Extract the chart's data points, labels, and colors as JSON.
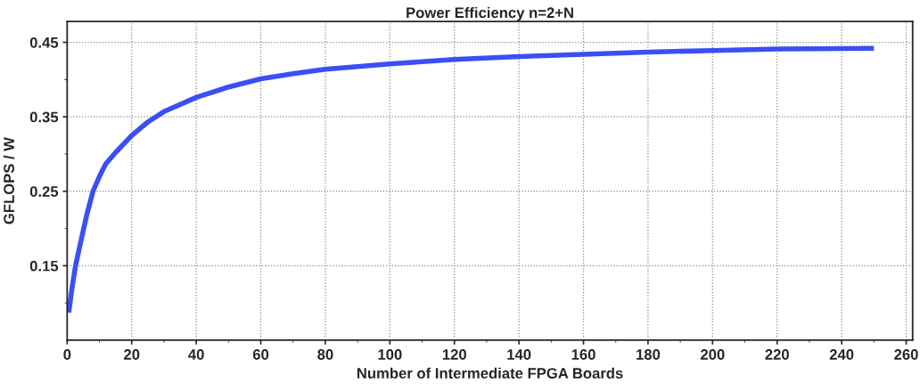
{
  "chart_data": {
    "type": "line",
    "title": "Power Efficiency n=2+N",
    "xlabel": "Number of Intermediate FPGA Boards",
    "ylabel": "GFLOPS / W",
    "series": [
      {
        "color": "#3a4ff5",
        "x": [
          0.5,
          1.5,
          2.6,
          4,
          6,
          8,
          10,
          12,
          15,
          20,
          25,
          30,
          40,
          50,
          60,
          70,
          80,
          100,
          120,
          140,
          160,
          180,
          200,
          220,
          250
        ],
        "values": [
          0.087,
          0.12,
          0.15,
          0.178,
          0.217,
          0.25,
          0.27,
          0.287,
          0.302,
          0.325,
          0.343,
          0.357,
          0.376,
          0.39,
          0.401,
          0.408,
          0.414,
          0.421,
          0.427,
          0.431,
          0.434,
          0.437,
          0.439,
          0.441,
          0.442
        ]
      }
    ],
    "xlim": [
      0,
      262
    ],
    "xticks": [
      0,
      20,
      40,
      60,
      80,
      100,
      120,
      140,
      160,
      180,
      200,
      220,
      240,
      260
    ],
    "ylim": [
      0.05,
      0.478
    ],
    "yticks": [
      0.15,
      0.25,
      0.35,
      0.45
    ],
    "grid": true,
    "line_style": "solid",
    "marker": "none",
    "legend": false
  }
}
